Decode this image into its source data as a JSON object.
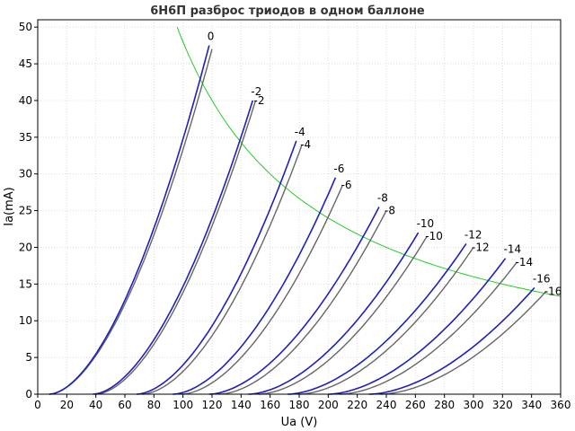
{
  "chart_data": {
    "type": "line",
    "title": "6Н6П разброс триодов в одном баллоне",
    "xlabel": "Ua (V)",
    "ylabel": "Ia(mA)",
    "xlim": [
      0,
      360
    ],
    "ylim": [
      0,
      51
    ],
    "x_ticks": [
      0,
      20,
      40,
      60,
      80,
      100,
      120,
      140,
      160,
      180,
      200,
      220,
      240,
      260,
      280,
      300,
      320,
      340,
      360
    ],
    "y_ticks": [
      0,
      5,
      10,
      15,
      20,
      25,
      30,
      35,
      40,
      45,
      50
    ],
    "grid": true,
    "colors": {
      "triode_a": "#1f1fbf",
      "triode_b": "#666666",
      "power_limit": "#22cc22"
    },
    "curves": [
      {
        "label": "0",
        "a": {
          "x0": 8,
          "x_end": 118,
          "y_end": 47.5
        },
        "b": {
          "x0": 8,
          "x_end": 120,
          "y_end": 47.0
        }
      },
      {
        "label": "-2",
        "a": {
          "x0": 38,
          "x_end": 148,
          "y_end": 40.0
        },
        "b": {
          "x0": 40,
          "x_end": 150,
          "y_end": 40.0
        }
      },
      {
        "label": "-4",
        "a": {
          "x0": 68,
          "x_end": 178,
          "y_end": 34.5
        },
        "b": {
          "x0": 72,
          "x_end": 182,
          "y_end": 34.0
        }
      },
      {
        "label": "-6",
        "a": {
          "x0": 93,
          "x_end": 205,
          "y_end": 29.5
        },
        "b": {
          "x0": 99,
          "x_end": 210,
          "y_end": 28.5
        }
      },
      {
        "label": "-8",
        "a": {
          "x0": 118,
          "x_end": 235,
          "y_end": 25.5
        },
        "b": {
          "x0": 125,
          "x_end": 240,
          "y_end": 25.0
        }
      },
      {
        "label": "-10",
        "a": {
          "x0": 145,
          "x_end": 262,
          "y_end": 22.0
        },
        "b": {
          "x0": 152,
          "x_end": 268,
          "y_end": 21.5
        }
      },
      {
        "label": "-12",
        "a": {
          "x0": 172,
          "x_end": 295,
          "y_end": 20.5
        },
        "b": {
          "x0": 180,
          "x_end": 300,
          "y_end": 20.0
        }
      },
      {
        "label": "-14",
        "a": {
          "x0": 200,
          "x_end": 322,
          "y_end": 18.5
        },
        "b": {
          "x0": 208,
          "x_end": 330,
          "y_end": 18.0
        }
      },
      {
        "label": "-16",
        "a": {
          "x0": 228,
          "x_end": 342,
          "y_end": 14.5
        },
        "b": {
          "x0": 236,
          "x_end": 350,
          "y_end": 14.0
        }
      }
    ],
    "power_limit_curve": {
      "product_ua_ia_VmA": 4800,
      "x_range": [
        96,
        360
      ]
    }
  }
}
